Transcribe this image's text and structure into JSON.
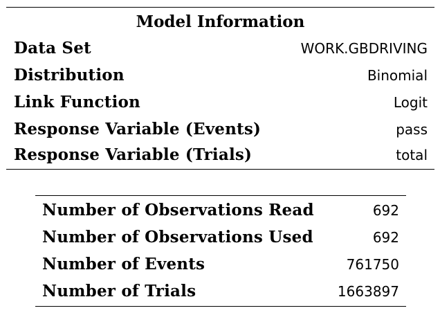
{
  "model_info": {
    "title": "Model Information",
    "rows": [
      {
        "label": "Data Set",
        "value": "WORK.GBDRIVING"
      },
      {
        "label": "Distribution",
        "value": "Binomial"
      },
      {
        "label": "Link Function",
        "value": "Logit"
      },
      {
        "label": "Response Variable (Events)",
        "value": "pass"
      },
      {
        "label": "Response Variable (Trials)",
        "value": "total"
      }
    ]
  },
  "observations": {
    "rows": [
      {
        "label": "Number of Observations Read",
        "value": "692"
      },
      {
        "label": "Number of Observations Used",
        "value": "692"
      },
      {
        "label": "Number of Events",
        "value": "761750"
      },
      {
        "label": "Number of Trials",
        "value": "1663897"
      }
    ]
  }
}
